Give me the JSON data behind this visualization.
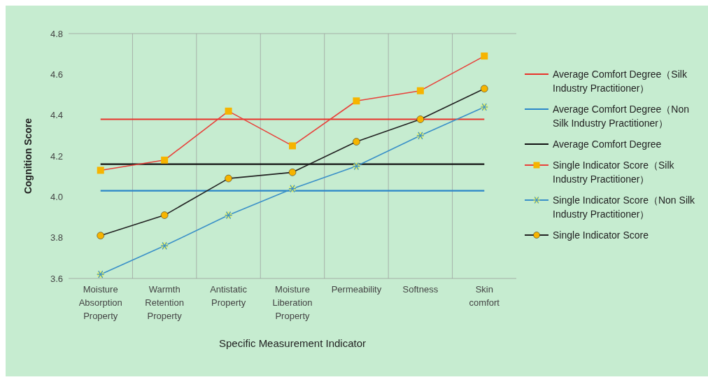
{
  "chart_data": {
    "type": "line",
    "xlabel": "Specific Measurement Indicator",
    "ylabel": "Cognition Score",
    "categories": [
      "Moisture Absorption Property",
      "Warmth Retention Property",
      "Antistatic Property",
      "Moisture Liberation Property",
      "Permeability",
      "Softness",
      "Skin comfort"
    ],
    "series": [
      {
        "name": "Average Comfort Degree（Silk Industry Practitioner）",
        "color": "#e8322a",
        "marker": "none",
        "values": [
          4.38,
          4.38,
          4.38,
          4.38,
          4.38,
          4.38,
          4.38
        ]
      },
      {
        "name": "Average Comfort Degree（Non Silk Industry Practitioner）",
        "color": "#2a86c8",
        "marker": "none",
        "values": [
          4.03,
          4.03,
          4.03,
          4.03,
          4.03,
          4.03,
          4.03
        ]
      },
      {
        "name": "Average Comfort Degree",
        "color": "#111111",
        "marker": "none",
        "values": [
          4.16,
          4.16,
          4.16,
          4.16,
          4.16,
          4.16,
          4.16
        ]
      },
      {
        "name": "Single Indicator Score（Silk Industry Practitioner）",
        "color": "#e8403a",
        "marker": "square",
        "values": [
          4.13,
          4.18,
          4.42,
          4.25,
          4.47,
          4.52,
          4.69
        ]
      },
      {
        "name": "Single Indicator Score（Non Silk Industry Practitioner）",
        "color": "#3a90c8",
        "marker": "cross",
        "values": [
          3.62,
          3.76,
          3.91,
          4.04,
          4.15,
          4.3,
          4.44
        ]
      },
      {
        "name": "Single Indicator Score",
        "color": "#222222",
        "marker": "circle",
        "values": [
          3.81,
          3.91,
          4.09,
          4.12,
          4.27,
          4.38,
          4.53
        ]
      }
    ],
    "ylim": [
      3.6,
      4.8
    ],
    "yticks": [
      {
        "value": 3.6,
        "label": "3.6"
      },
      {
        "value": 3.8,
        "label": "3.8"
      },
      {
        "value": 4,
        "label": "4.0"
      },
      {
        "value": 4.2,
        "label": "4.2"
      },
      {
        "value": 4.4,
        "label": "4.4"
      },
      {
        "value": 4.6,
        "label": "4.6"
      },
      {
        "value": 4.8,
        "label": "4.8"
      }
    ],
    "grid": true,
    "legend": "right"
  }
}
